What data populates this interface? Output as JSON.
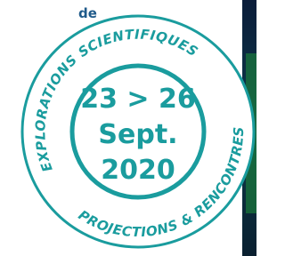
{
  "left_text": "de",
  "badge": {
    "top_arc": "EXPLORATIONS SCIENTIFIQUES",
    "bottom_arc": "PROJECTIONS & RENCONTRES",
    "dates": "23 > 26",
    "month": "Sept.",
    "year": "2020"
  }
}
